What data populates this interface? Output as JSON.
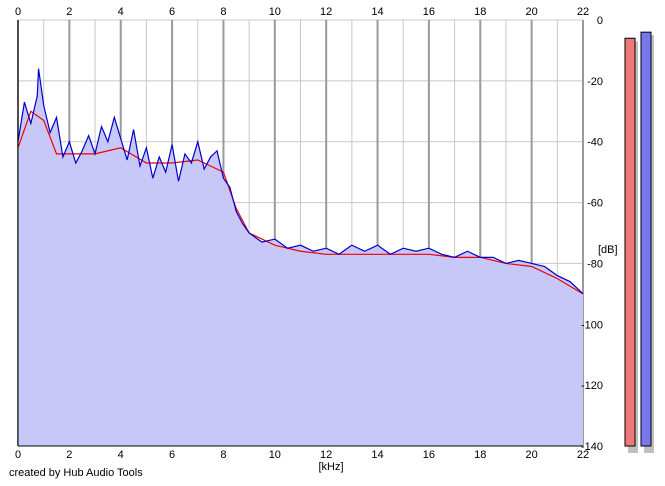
{
  "credit": "created by Hub Audio Tools",
  "chart_data": {
    "type": "area",
    "xlabel": "[kHz]",
    "ylabel": "[dB]",
    "xlim": [
      0,
      22
    ],
    "ylim": [
      -140,
      0
    ],
    "x_ticks": [
      0,
      2,
      4,
      6,
      8,
      10,
      12,
      14,
      16,
      18,
      20,
      22
    ],
    "y_ticks": [
      0,
      -20,
      -40,
      -60,
      -80,
      -100,
      -120,
      -140
    ],
    "grid": true,
    "colors": {
      "fill": "#c8c8f8",
      "left_channel": "#ee0000",
      "right_channel": "#0000cc",
      "grid": "#c8c8c8",
      "major_grid": "#9a9a9a"
    },
    "series": [
      {
        "color": "#0000cc",
        "x": [
          0,
          0.25,
          0.5,
          0.75,
          0.8,
          1.0,
          1.25,
          1.5,
          1.75,
          2.0,
          2.25,
          2.5,
          2.75,
          3.0,
          3.25,
          3.5,
          3.75,
          4.0,
          4.25,
          4.5,
          4.75,
          5.0,
          5.25,
          5.5,
          5.75,
          6.0,
          6.25,
          6.5,
          6.75,
          7.0,
          7.25,
          7.5,
          7.75,
          8.0,
          8.25,
          8.5,
          8.75,
          9.0,
          9.5,
          10.0,
          10.5,
          11.0,
          11.5,
          12.0,
          12.5,
          13.0,
          13.5,
          14.0,
          14.5,
          15.0,
          15.5,
          16.0,
          16.5,
          17.0,
          17.5,
          18.0,
          18.5,
          19.0,
          19.5,
          20.0,
          20.5,
          21.0,
          21.5,
          22.0
        ],
        "values": [
          -40,
          -27,
          -34,
          -25,
          -16,
          -28,
          -37,
          -32,
          -45,
          -40,
          -47,
          -43,
          -38,
          -44,
          -35,
          -40,
          -32,
          -39,
          -46,
          -36,
          -48,
          -42,
          -52,
          -45,
          -50,
          -41,
          -53,
          -44,
          -47,
          -40,
          -49,
          -45,
          -43,
          -52,
          -55,
          -63,
          -67,
          -70,
          -73,
          -72,
          -75,
          -74,
          -76,
          -75,
          -77,
          -74,
          -76,
          -74,
          -77,
          -75,
          -76,
          -75,
          -77,
          -78,
          -76,
          -78,
          -78,
          -80,
          -79,
          -80,
          -81,
          -84,
          -86,
          -90
        ]
      },
      {
        "color": "#ee0000",
        "x": [
          0,
          0.5,
          1.0,
          1.5,
          2.0,
          3.0,
          4.0,
          5.0,
          6.0,
          7.0,
          8.0,
          8.5,
          9.0,
          10.0,
          11.0,
          12.0,
          13.0,
          14.0,
          15.0,
          16.0,
          17.0,
          18.0,
          19.0,
          20.0,
          21.0,
          22.0
        ],
        "values": [
          -42,
          -30,
          -33,
          -44,
          -44,
          -44,
          -42,
          -47,
          -47,
          -46,
          -50,
          -62,
          -70,
          -74,
          -76,
          -77,
          -77,
          -77,
          -77,
          -77,
          -78,
          -78,
          -80,
          -81,
          -85,
          -90
        ]
      }
    ],
    "level_meters": {
      "ylim": [
        -140,
        0
      ],
      "bars": [
        {
          "color": "#ee7777",
          "value": -6
        },
        {
          "color": "#7777ee",
          "value": -4
        }
      ]
    }
  }
}
